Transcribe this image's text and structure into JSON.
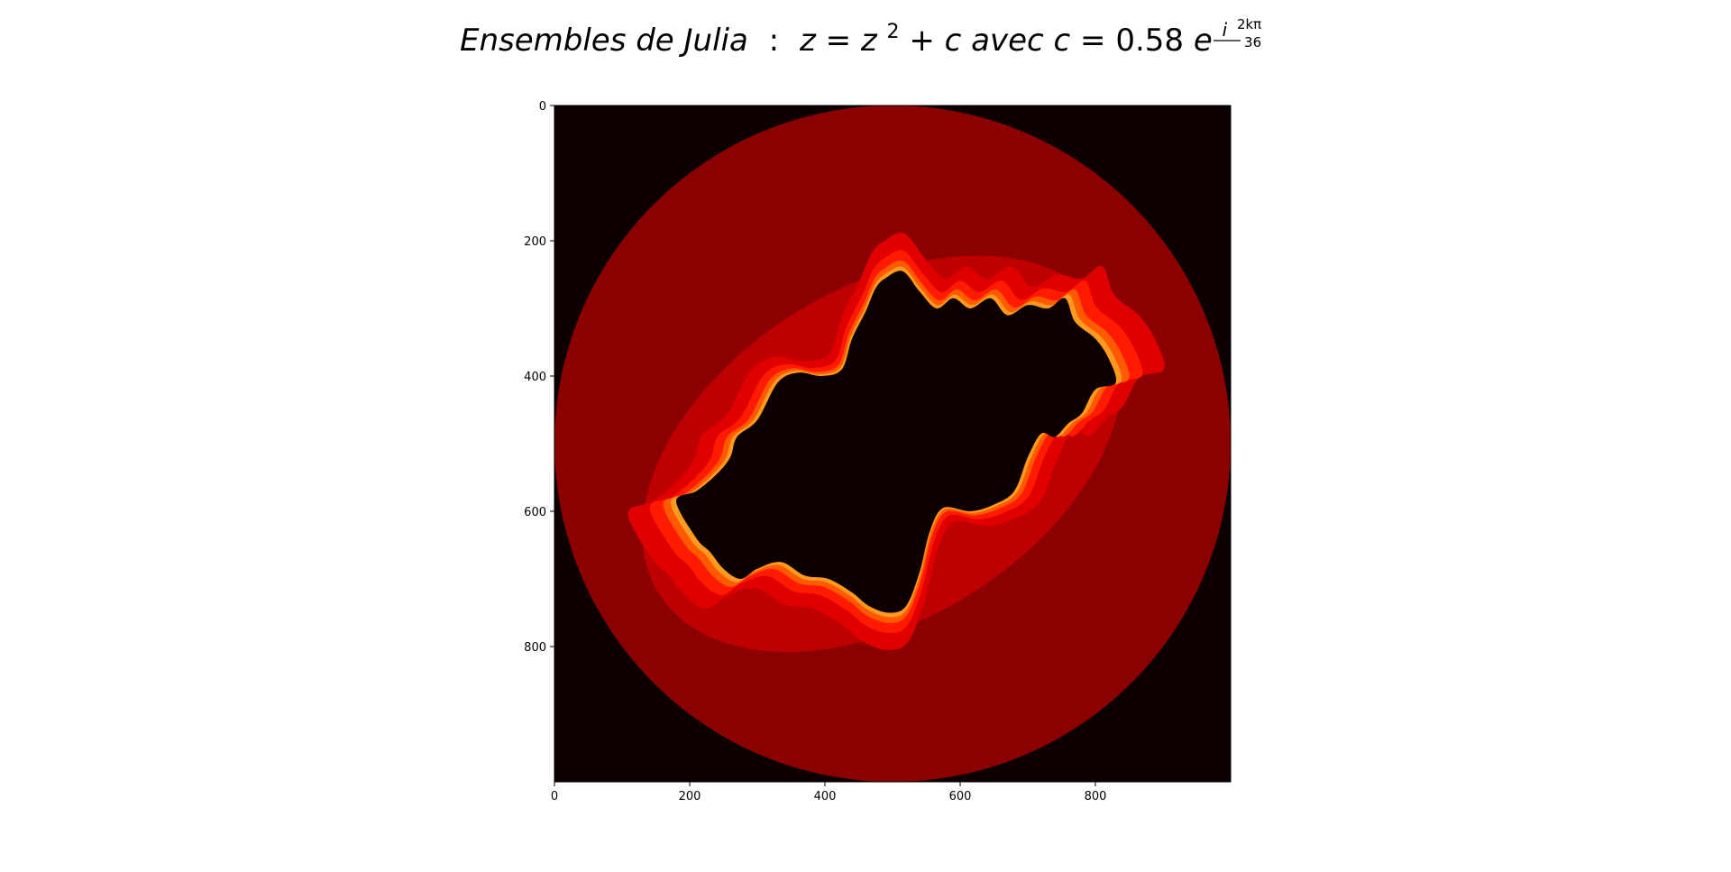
{
  "chart_data": {
    "type": "heatmap",
    "title": {
      "part1": "Ensembles de Julia",
      "colon": ":",
      "z_eq": "z = z",
      "sq": "2",
      "plus_c": " + c avec c = ",
      "num": "0.58",
      "e_letter": " e",
      "i_letter": "i",
      "frac_num": "2kπ",
      "frac_den": "36"
    },
    "xlabel": "",
    "ylabel": "",
    "xlim": [
      0,
      1000
    ],
    "ylim": [
      1000,
      0
    ],
    "x_ticks": [
      "0",
      "200",
      "400",
      "600",
      "800"
    ],
    "y_ticks": [
      "0",
      "200",
      "400",
      "600",
      "800"
    ],
    "grid": false,
    "colormap": "hot",
    "colors": {
      "outside": "#0d0000",
      "band1": "#8b0000",
      "band2": "#bf0000",
      "band3": "#e00000",
      "band4": "#ff1a00",
      "band5": "#ff5a00",
      "band6": "#ff9a20",
      "set": "#0d0000"
    },
    "image_description_values": {
      "grid_size": [
        1000,
        1000
      ]
    }
  }
}
